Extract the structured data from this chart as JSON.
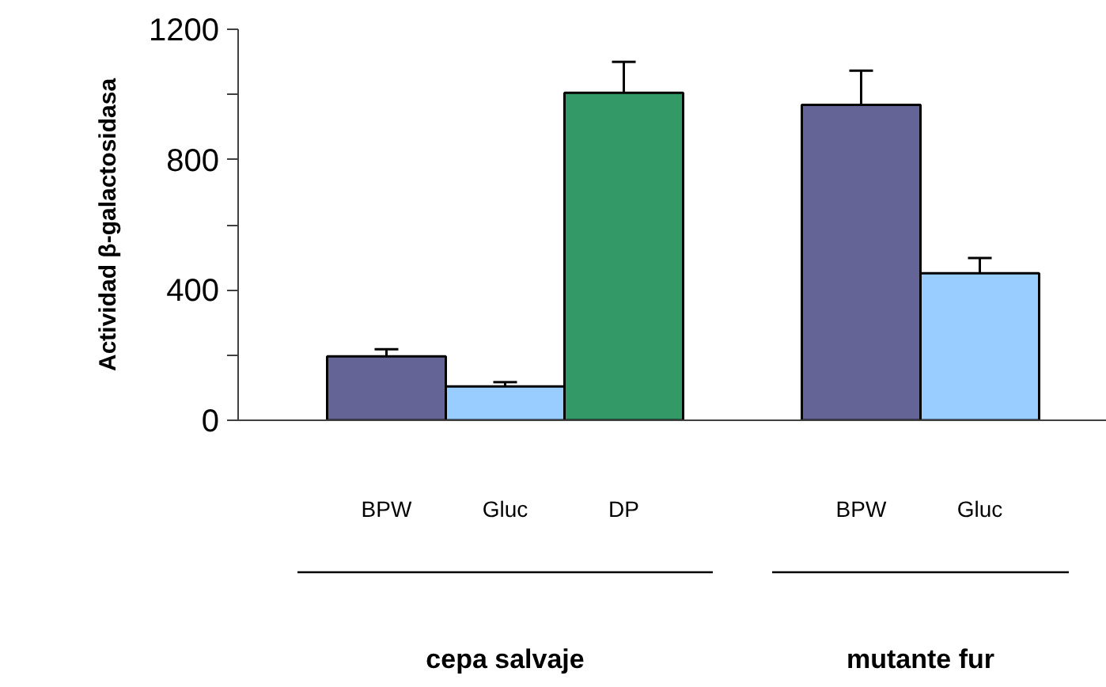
{
  "chart_data": {
    "type": "bar",
    "ylabel": "Actividad β-galactosidasa",
    "categories": [
      "BPW",
      "Gluc",
      "DP",
      null,
      "BPW",
      "Gluc"
    ],
    "values": [
      196,
      104,
      1005,
      null,
      968,
      451
    ],
    "errors": [
      22,
      13,
      95,
      null,
      105,
      47
    ],
    "colors": [
      "#646496",
      "#99ccff",
      "#339966",
      null,
      "#646496",
      "#99ccff"
    ],
    "ylim": [
      0,
      1200
    ],
    "yticks": [
      0,
      {
        "value": 200,
        "label": null
      },
      400,
      {
        "value": 600,
        "label": null
      },
      800,
      {
        "value": 1000,
        "label": null
      },
      1200
    ],
    "annotations": [
      "cepa salvaje",
      "mutante fur"
    ],
    "grid": false
  }
}
